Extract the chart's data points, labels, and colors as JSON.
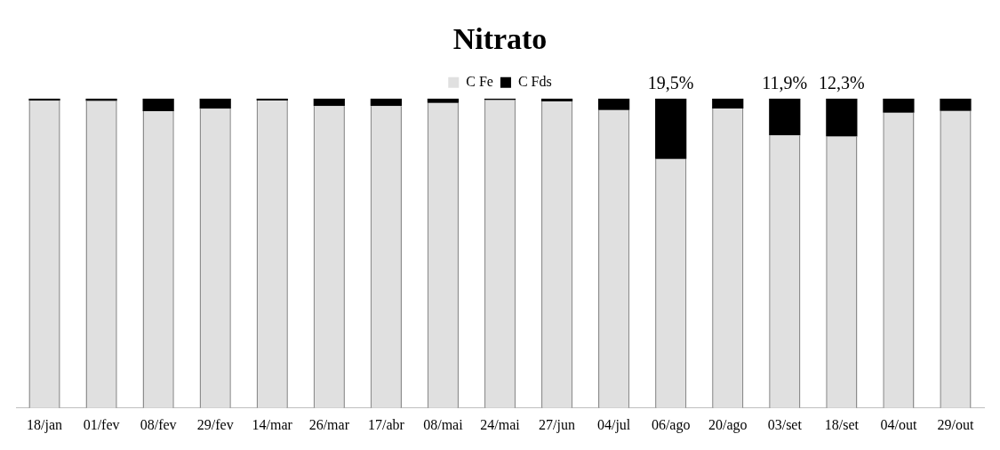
{
  "chart_data": {
    "type": "bar",
    "title": "Nitrato",
    "stacked": true,
    "legend": "top",
    "grid": false,
    "categories": [
      "18/jan",
      "01/fev",
      "08/fev",
      "29/fev",
      "14/mar",
      "26/mar",
      "17/abr",
      "08/mai",
      "24/mai",
      "27/jun",
      "04/jul",
      "06/ago",
      "20/ago",
      "03/set",
      "18/set",
      "04/out",
      "29/out"
    ],
    "series": [
      {
        "name": "C Fe",
        "color": "#e0e0e0",
        "values": [
          99.3,
          99.2,
          95.9,
          96.7,
          99.4,
          97.6,
          97.6,
          98.6,
          99.5,
          99.1,
          96.3,
          80.5,
          96.8,
          88.1,
          87.7,
          95.4,
          96.0
        ]
      },
      {
        "name": "C Fds",
        "color": "#000000",
        "values": [
          0.7,
          0.8,
          4.1,
          3.3,
          0.6,
          2.4,
          2.4,
          1.4,
          0.5,
          0.9,
          3.7,
          19.5,
          3.2,
          11.9,
          12.3,
          4.6,
          4.0
        ],
        "value_labels": [
          null,
          null,
          null,
          null,
          null,
          null,
          null,
          null,
          null,
          null,
          null,
          "19,5%",
          null,
          "11,9%",
          "12,3%",
          null,
          null
        ]
      }
    ]
  }
}
